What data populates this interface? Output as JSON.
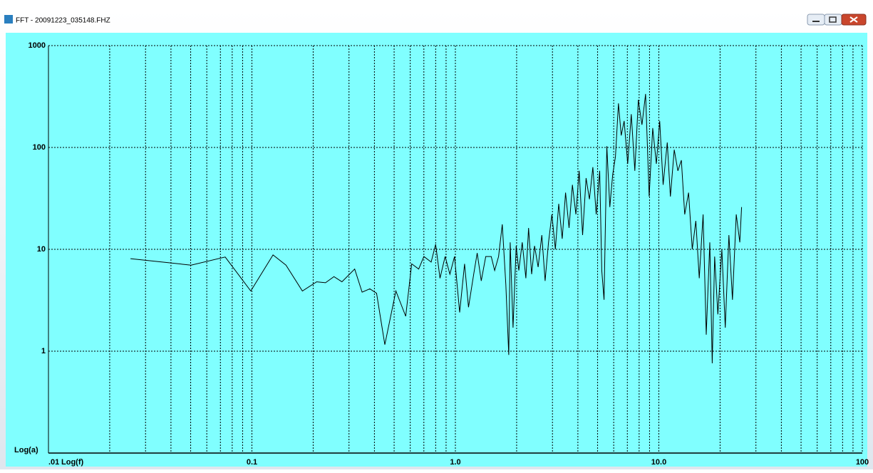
{
  "window": {
    "title": "FFT - 20091223_035148.FHZ"
  },
  "chart_data": {
    "type": "line",
    "x_label": "Log(f)",
    "y_label": "Log(a)",
    "x": [
      0.0253,
      0.0502,
      0.0739,
      0.0987,
      0.127,
      0.147,
      0.177,
      0.208,
      0.23,
      0.253,
      0.277,
      0.32,
      0.348,
      0.38,
      0.41,
      0.45,
      0.51,
      0.57,
      0.61,
      0.66,
      0.7,
      0.76,
      0.8,
      0.84,
      0.89,
      0.94,
      0.99,
      1.05,
      1.11,
      1.16,
      1.23,
      1.28,
      1.34,
      1.41,
      1.5,
      1.56,
      1.63,
      1.7,
      1.77,
      1.83,
      1.86,
      1.92,
      1.99,
      2.05,
      2.13,
      2.22,
      2.29,
      2.37,
      2.45,
      2.55,
      2.66,
      2.76,
      2.87,
      2.98,
      3.1,
      3.22,
      3.35,
      3.48,
      3.62,
      3.76,
      3.91,
      4.06,
      4.22,
      4.39,
      4.56,
      4.74,
      4.92,
      5.12,
      5.24,
      5.38,
      5.55,
      5.74,
      5.93,
      6.12,
      6.33,
      6.53,
      6.75,
      7.03,
      7.32,
      7.62,
      7.93,
      8.26,
      8.61,
      8.96,
      9.33,
      9.72,
      10.1,
      10.5,
      11.0,
      11.4,
      11.9,
      12.4,
      12.9,
      13.4,
      14.0,
      14.6,
      15.2,
      15.8,
      16.5,
      17.1,
      17.8,
      18.3,
      18.8,
      19.5,
      20.4,
      21.2,
      22.1,
      23.0,
      24.0,
      25.0,
      25.5
    ],
    "values": [
      8.1,
      7.0,
      8.4,
      3.9,
      8.8,
      7.0,
      3.9,
      4.8,
      4.7,
      5.4,
      4.8,
      6.4,
      3.8,
      4.1,
      3.7,
      1.16,
      3.9,
      2.2,
      7.2,
      6.4,
      8.5,
      7.5,
      11.2,
      5.2,
      8.5,
      5.7,
      8.5,
      2.4,
      7.2,
      2.7,
      5.7,
      9.2,
      4.9,
      8.5,
      8.5,
      6.2,
      8.5,
      17.6,
      4.5,
      0.92,
      11.7,
      1.7,
      10.8,
      6.2,
      11.7,
      5.2,
      16.2,
      5.7,
      10.8,
      6.7,
      13.8,
      4.9,
      11.7,
      22,
      10,
      28,
      12.7,
      36,
      16.2,
      43,
      22,
      59,
      13.8,
      50,
      31,
      64,
      22,
      59,
      6.2,
      3.2,
      103,
      26,
      54,
      81,
      271,
      131,
      182,
      69,
      212,
      59,
      293,
      167,
      335,
      33,
      155,
      69,
      182,
      43,
      112,
      33,
      95,
      59,
      75,
      22,
      36,
      10,
      19,
      5.2,
      22,
      1.45,
      11.7,
      0.76,
      8.5,
      2.3,
      10,
      1.7,
      13.8,
      3.2,
      22,
      11.7,
      26
    ],
    "color": "#000000",
    "log_x": true,
    "log_y": true,
    "grid": true,
    "xlim": [
      0.01,
      100
    ],
    "ylim": [
      0.1,
      1000
    ],
    "xticks": [
      {
        "value": 0.01,
        "label": ".01"
      },
      0.1,
      {
        "value": 1,
        "label": "1.0"
      },
      {
        "value": 10,
        "label": "10.0"
      },
      100
    ],
    "yticks": [
      1,
      10,
      100,
      1000
    ]
  }
}
